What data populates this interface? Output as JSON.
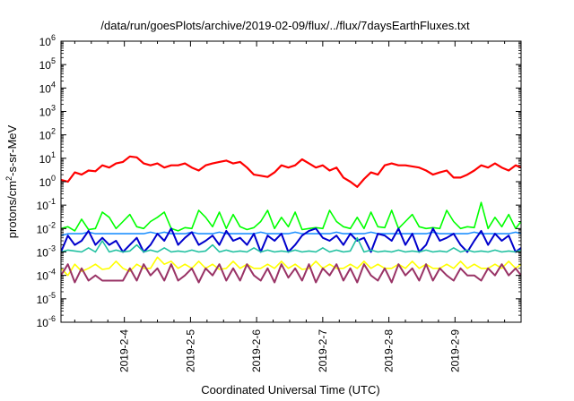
{
  "chart_data": {
    "type": "line",
    "title": "/data/run/goesPlots/archive/2019-02-09/flux/../flux/7daysEarthFluxes.txt",
    "xlabel": "Coordinated Universal Time (UTC)",
    "ylabel": {
      "pre": "protons/cm",
      "sup": "2",
      "post": "-s-sr-MeV"
    },
    "yscale": "log",
    "ylim": [
      1e-06,
      1000000.0
    ],
    "xlim": [
      "2019-02-03T01:00",
      "2019-02-09T23:59"
    ],
    "grid": false,
    "legend": "none",
    "y_ticks": [
      {
        "base": "10",
        "exp": "-6"
      },
      {
        "base": "10",
        "exp": "-5"
      },
      {
        "base": "10",
        "exp": "-4"
      },
      {
        "base": "10",
        "exp": "-3"
      },
      {
        "base": "10",
        "exp": "-2"
      },
      {
        "base": "10",
        "exp": "-1"
      },
      {
        "base": "10",
        "exp": "0"
      },
      {
        "base": "10",
        "exp": "1"
      },
      {
        "base": "10",
        "exp": "2"
      },
      {
        "base": "10",
        "exp": "3"
      },
      {
        "base": "10",
        "exp": "4"
      },
      {
        "base": "10",
        "exp": "5"
      },
      {
        "base": "10",
        "exp": "6"
      }
    ],
    "x_ticks": [
      "2019-2-4",
      "2019-2-5",
      "2019-2-6",
      "2019-2-7",
      "2019-2-8",
      "2019-2-9"
    ],
    "x_tick_dates": [
      "2019-02-04",
      "2019-02-05",
      "2019-02-06",
      "2019-02-07",
      "2019-02-08",
      "2019-02-09"
    ],
    "x": [
      "2019-02-03T01:00",
      "2019-02-03T03:30",
      "2019-02-03T06:00",
      "2019-02-03T08:30",
      "2019-02-03T11:00",
      "2019-02-03T13:30",
      "2019-02-03T16:00",
      "2019-02-03T18:30",
      "2019-02-03T21:00",
      "2019-02-03T23:30",
      "2019-02-04T02:00",
      "2019-02-04T04:30",
      "2019-02-04T07:00",
      "2019-02-04T09:30",
      "2019-02-04T12:00",
      "2019-02-04T14:30",
      "2019-02-04T17:00",
      "2019-02-04T19:30",
      "2019-02-04T22:00",
      "2019-02-05T00:30",
      "2019-02-05T03:00",
      "2019-02-05T05:30",
      "2019-02-05T08:00",
      "2019-02-05T10:30",
      "2019-02-05T13:00",
      "2019-02-05T15:30",
      "2019-02-05T18:00",
      "2019-02-05T20:30",
      "2019-02-05T23:00",
      "2019-02-06T01:30",
      "2019-02-06T04:00",
      "2019-02-06T06:30",
      "2019-02-06T09:00",
      "2019-02-06T11:30",
      "2019-02-06T14:00",
      "2019-02-06T16:30",
      "2019-02-06T19:00",
      "2019-02-06T21:30",
      "2019-02-07T00:00",
      "2019-02-07T02:30",
      "2019-02-07T05:00",
      "2019-02-07T07:30",
      "2019-02-07T10:00",
      "2019-02-07T12:30",
      "2019-02-07T15:00",
      "2019-02-07T17:30",
      "2019-02-07T20:00",
      "2019-02-07T22:30",
      "2019-02-08T01:00",
      "2019-02-08T03:30",
      "2019-02-08T06:00",
      "2019-02-08T08:30",
      "2019-02-08T11:00",
      "2019-02-08T13:30",
      "2019-02-08T16:00",
      "2019-02-08T18:30",
      "2019-02-08T21:00",
      "2019-02-08T23:30",
      "2019-02-09T02:00",
      "2019-02-09T04:30",
      "2019-02-09T07:00",
      "2019-02-09T09:30",
      "2019-02-09T12:00",
      "2019-02-09T14:30",
      "2019-02-09T17:00",
      "2019-02-09T19:30",
      "2019-02-09T22:00",
      "2019-02-09T23:59"
    ],
    "series": [
      {
        "color": "#ff0000",
        "width": 2.2,
        "values": [
          1.2,
          1,
          2.5,
          2,
          3,
          2.8,
          5,
          4,
          6,
          7,
          12,
          11,
          6,
          5,
          6,
          4,
          5,
          5,
          6,
          4,
          3,
          5,
          6,
          7,
          8,
          6,
          7,
          4,
          2,
          1.8,
          1.6,
          2.5,
          5,
          4,
          5,
          9,
          6,
          4,
          5,
          3,
          4,
          1.5,
          1,
          0.6,
          1.3,
          2.5,
          2,
          5,
          6,
          5,
          5,
          4.5,
          4,
          3,
          2,
          2.5,
          3,
          1.5,
          1.5,
          2,
          3,
          5,
          4,
          6,
          4,
          3,
          5,
          4
        ]
      },
      {
        "color": "#00ff00",
        "width": 1.6,
        "values": [
          0.01,
          0.012,
          0.008,
          0.025,
          0.009,
          0.01,
          0.05,
          0.03,
          0.01,
          0.02,
          0.04,
          0.012,
          0.01,
          0.02,
          0.03,
          0.05,
          0.01,
          0.008,
          0.011,
          0.01,
          0.06,
          0.03,
          0.012,
          0.05,
          0.01,
          0.04,
          0.012,
          0.009,
          0.011,
          0.02,
          0.06,
          0.01,
          0.03,
          0.012,
          0.05,
          0.009,
          0.01,
          0.011,
          0.01,
          0.06,
          0.02,
          0.012,
          0.01,
          0.03,
          0.01,
          0.05,
          0.012,
          0.011,
          0.06,
          0.01,
          0.02,
          0.04,
          0.012,
          0.01,
          0.011,
          0.01,
          0.06,
          0.02,
          0.01,
          0.012,
          0.011,
          0.13,
          0.01,
          0.03,
          0.012,
          0.04,
          0.01,
          0.02
        ]
      },
      {
        "color": "#1e90ff",
        "width": 1.6,
        "values": [
          0.005,
          0.006,
          0.006,
          0.006,
          0.007,
          0.006,
          0.006,
          0.006,
          0.006,
          0.006,
          0.006,
          0.006,
          0.006,
          0.007,
          0.006,
          0.007,
          0.006,
          0.006,
          0.006,
          0.007,
          0.006,
          0.006,
          0.006,
          0.007,
          0.006,
          0.006,
          0.006,
          0.006,
          0.006,
          0.007,
          0.006,
          0.006,
          0.006,
          0.006,
          0.007,
          0.006,
          0.006,
          0.006,
          0.006,
          0.006,
          0.007,
          0.006,
          0.006,
          0.006,
          0.006,
          0.007,
          0.006,
          0.006,
          0.006,
          0.006,
          0.006,
          0.006,
          0.006,
          0.006,
          0.007,
          0.006,
          0.006,
          0.006,
          0.006,
          0.006,
          0.007,
          0.006,
          0.006,
          0.006,
          0.006,
          0.006,
          0.007,
          0.006
        ]
      },
      {
        "color": "#0000cc",
        "width": 2.0,
        "values": [
          0.001,
          0.005,
          0.002,
          0.003,
          0.008,
          0.002,
          0.004,
          0.002,
          0.003,
          0.001,
          0.002,
          0.004,
          0.001,
          0.002,
          0.006,
          0.003,
          0.01,
          0.002,
          0.004,
          0.007,
          0.002,
          0.003,
          0.005,
          0.002,
          0.008,
          0.003,
          0.004,
          0.002,
          0.006,
          0.001,
          0.005,
          0.003,
          0.006,
          0.001,
          0.002,
          0.005,
          0.008,
          0.01,
          0.004,
          0.003,
          0.005,
          0.002,
          0.006,
          0.003,
          0.004,
          0.001,
          0.006,
          0.005,
          0.003,
          0.01,
          0.002,
          0.006,
          0.001,
          0.002,
          0.01,
          0.003,
          0.004,
          0.006,
          0.002,
          0.001,
          0.003,
          0.008,
          0.002,
          0.006,
          0.003,
          0.005,
          0.001,
          0.0015
        ]
      },
      {
        "color": "#20c0a0",
        "width": 1.6,
        "values": [
          0.001,
          0.0012,
          0.0011,
          0.001,
          0.0015,
          0.001,
          0.003,
          0.001,
          0.0012,
          0.001,
          0.0011,
          0.002,
          0.001,
          0.0012,
          0.001,
          0.0015,
          0.001,
          0.0011,
          0.001,
          0.0012,
          0.001,
          0.0011,
          0.002,
          0.001,
          0.0012,
          0.001,
          0.0011,
          0.001,
          0.0015,
          0.001,
          0.0012,
          0.001,
          0.0011,
          0.001,
          0.0012,
          0.001,
          0.0011,
          0.001,
          0.0015,
          0.001,
          0.0012,
          0.001,
          0.0011,
          0.004,
          0.001,
          0.0012,
          0.001,
          0.0011,
          0.001,
          0.0012,
          0.001,
          0.0011,
          0.001,
          0.0012,
          0.001,
          0.0011,
          0.001,
          0.0015,
          0.001,
          0.0012,
          0.001,
          0.0011,
          0.001,
          0.0012,
          0.001,
          0.0011,
          0.001,
          0.0012
        ]
      },
      {
        "color": "#ffff00",
        "width": 1.6,
        "values": [
          0.0002,
          0.0001,
          0.0003,
          0.00015,
          0.0002,
          0.0003,
          0.00018,
          0.0002,
          0.0004,
          0.0002,
          0.00015,
          0.0003,
          0.0002,
          0.0002,
          0.0006,
          0.0003,
          0.0004,
          0.0002,
          0.0003,
          0.0002,
          0.0004,
          0.0002,
          0.0003,
          0.00018,
          0.0002,
          0.0004,
          0.0002,
          0.0003,
          0.0002,
          0.0002,
          0.0003,
          0.0002,
          0.0004,
          0.0002,
          0.0003,
          0.00018,
          0.0002,
          0.0004,
          0.0002,
          0.0003,
          0.0002,
          0.0002,
          0.0003,
          0.0002,
          0.0004,
          0.0002,
          0.0003,
          0.0002,
          0.0002,
          0.0003,
          0.0002,
          0.0004,
          0.0002,
          0.0003,
          0.0002,
          0.0002,
          0.0003,
          0.0002,
          0.0004,
          0.0002,
          0.0003,
          0.0002,
          0.0002,
          0.0003,
          0.0002,
          0.0004,
          0.0002,
          0.0003
        ]
      },
      {
        "color": "#993366",
        "width": 2.0,
        "values": [
          0.0001,
          0.0003,
          5e-05,
          0.0002,
          6e-05,
          0.0001,
          6e-05,
          6e-05,
          6e-05,
          6e-05,
          0.0002,
          6e-05,
          0.0003,
          0.0001,
          0.0002,
          6e-05,
          0.0003,
          6e-05,
          0.0001,
          0.0002,
          5e-05,
          0.0002,
          0.0001,
          0.0003,
          6e-05,
          0.0002,
          6e-05,
          0.0003,
          0.0001,
          6e-05,
          0.0002,
          5e-05,
          0.0003,
          8e-05,
          0.0002,
          6e-05,
          0.0003,
          5e-05,
          0.0002,
          0.0001,
          0.0003,
          6e-05,
          0.0002,
          5e-05,
          0.0003,
          0.0001,
          6e-05,
          0.0002,
          5e-05,
          0.0003,
          0.0001,
          0.0002,
          6e-05,
          0.0003,
          6e-05,
          0.0002,
          0.0001,
          6e-05,
          0.0002,
          0.0001,
          0.0001,
          6e-05,
          0.0002,
          0.0001,
          0.0003,
          0.0001,
          0.0002,
          0.0001
        ]
      }
    ]
  }
}
